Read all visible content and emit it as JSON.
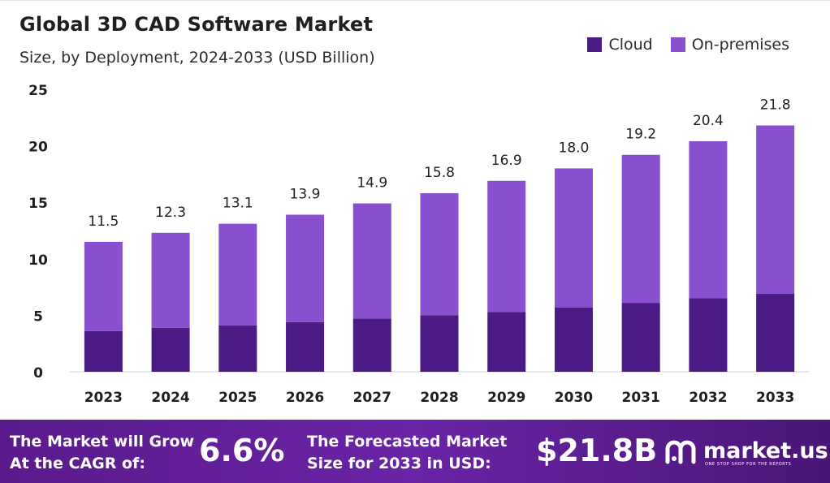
{
  "title": "Global 3D CAD Software Market",
  "subtitle": "Size, by Deployment, 2024-2033 (USD Billion)",
  "legend": [
    {
      "name": "Cloud",
      "color": "#4b1a84"
    },
    {
      "name": "On-premises",
      "color": "#8a4fd0"
    }
  ],
  "chart_data": {
    "type": "bar",
    "stacked": true,
    "categories": [
      "2023",
      "2024",
      "2025",
      "2026",
      "2027",
      "2028",
      "2029",
      "2030",
      "2031",
      "2032",
      "2033"
    ],
    "series": [
      {
        "name": "Cloud",
        "values": [
          3.6,
          3.9,
          4.1,
          4.4,
          4.7,
          5.0,
          5.3,
          5.7,
          6.1,
          6.5,
          6.9
        ]
      },
      {
        "name": "On-premises",
        "values": [
          7.9,
          8.4,
          9.0,
          9.5,
          10.2,
          10.8,
          11.6,
          12.3,
          13.1,
          13.9,
          14.9
        ]
      }
    ],
    "totals": [
      11.5,
      12.3,
      13.1,
      13.9,
      14.9,
      15.8,
      16.9,
      18.0,
      19.2,
      20.4,
      21.8
    ],
    "total_labels": [
      "11.5",
      "12.3",
      "13.1",
      "13.9",
      "14.9",
      "15.8",
      "16.9",
      "18.0",
      "19.2",
      "20.4",
      "21.8"
    ],
    "yticks": [
      "0",
      "5",
      "10",
      "15",
      "20",
      "25"
    ],
    "ylim": [
      0,
      25
    ],
    "grid": false,
    "legend_position": "top-right"
  },
  "footer": {
    "cagr_text_line1": "The Market will Grow",
    "cagr_text_line2": "At the CAGR of:",
    "cagr_value": "6.6%",
    "forecast_text_line1": "The Forecasted Market",
    "forecast_text_line2": "Size for 2033 in USD:",
    "forecast_value": "$21.8B",
    "logo_name": "market.us",
    "logo_tagline": "ONE STOP SHOP FOR THE REPORTS"
  }
}
